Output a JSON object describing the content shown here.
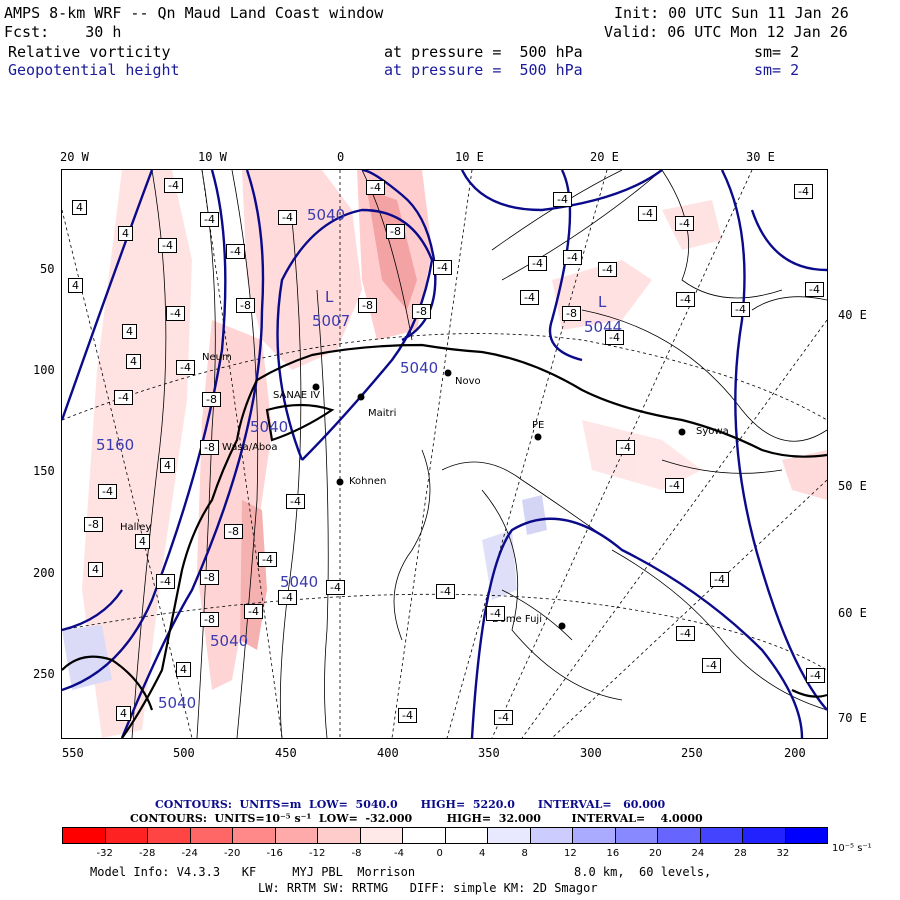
{
  "header": {
    "line1_left": "AMPS 8-km WRF -- Qn Maud Land Coast window",
    "line1_right": "Init: 00 UTC Sun 11 Jan 26",
    "line2_left": "Fcst:    30 h",
    "line2_right": "Valid: 06 UTC Mon 12 Jan 26",
    "field1_name": "Relative vorticity",
    "field1_level": "at pressure =  500 hPa",
    "field1_sm": "sm= 2",
    "field2_name": "Geopotential height",
    "field2_level": "at pressure =  500 hPa",
    "field2_sm": "sm= 2"
  },
  "longitude_labels": [
    "20 W",
    "10 W",
    "0",
    "10 E",
    "20 E",
    "30 E"
  ],
  "right_labels": [
    "40 E",
    "50 E",
    "60 E",
    "70 E"
  ],
  "y_ticks": [
    "50",
    "100",
    "150",
    "200",
    "250"
  ],
  "x_ticks": [
    "550",
    "500",
    "450",
    "400",
    "350",
    "300",
    "250",
    "200"
  ],
  "places": [
    {
      "name": "Neum",
      "dot": false
    },
    {
      "name": "SANAE IV",
      "dot": true
    },
    {
      "name": "Maitri",
      "dot": true
    },
    {
      "name": "Novo",
      "dot": true
    },
    {
      "name": "Kohnen",
      "dot": true
    },
    {
      "name": "Halley",
      "dot": false
    },
    {
      "name": "PE",
      "dot": true
    },
    {
      "name": "Syowa",
      "dot": true
    },
    {
      "name": "Dome Fuji",
      "dot": true
    },
    {
      "name": "Wasa/Aboa",
      "dot": false
    }
  ],
  "height_labels": [
    "5040",
    "L",
    "5007",
    "5040",
    "L",
    "5044",
    "5040",
    "5160",
    "5040",
    "5040",
    "5040"
  ],
  "vort_labels": [
    "4",
    "-4",
    "-8",
    "-4",
    "4"
  ],
  "legend": {
    "contours1": "CONTOURS:  UNITS=m  LOW=  5040.0      HIGH=  5220.0      INTERVAL=   60.000",
    "contours2": "CONTOURS:  UNITS=10⁻⁵ s⁻¹  LOW=  -32.000         HIGH=  32.000        INTERVAL=    4.0000",
    "colorbar_labels": [
      "-32",
      "-28",
      "-24",
      "-20",
      "-16",
      "-12",
      "-8",
      "-4",
      "0",
      "4",
      "8",
      "12",
      "16",
      "20",
      "24",
      "28",
      "32"
    ],
    "colorbar_unit": "10⁻⁵ s⁻¹",
    "colors": [
      "#ff0000",
      "#ff2222",
      "#ff4444",
      "#ff6666",
      "#ff8888",
      "#ffaaaa",
      "#ffcccc",
      "#ffe8e8",
      "#ffffff",
      "#ffffff",
      "#e8e8ff",
      "#ccccff",
      "#aaaaff",
      "#8888ff",
      "#6666ff",
      "#4444ff",
      "#2222ff",
      "#0000ff"
    ]
  },
  "footer": {
    "line1_left": "Model Info: V4.3.3   KF     MYJ PBL  Morrison",
    "line1_right": "8.0 km,  60 levels,",
    "line2": "LW: RRTM SW: RRTMG   DIFF: simple KM: 2D Smagor"
  },
  "colors": {
    "height_contour": "#0a0a8a",
    "coast": "#000000",
    "positive_vort": "#f08080",
    "negative_vort": "#9090e0"
  }
}
